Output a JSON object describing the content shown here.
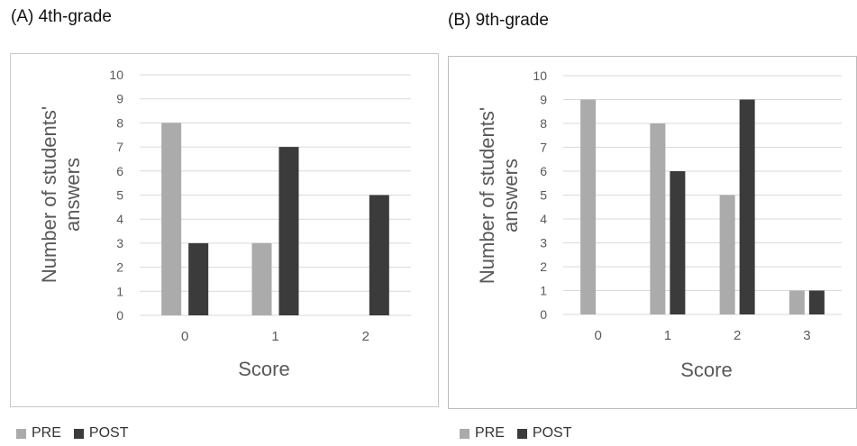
{
  "colors": {
    "pre": "#ababab",
    "post": "#3b3b3b",
    "grid": "#d9d9d9",
    "axis_text": "#595959"
  },
  "chart_data": [
    {
      "panel_title": "(A) 4th-grade",
      "type": "bar",
      "categories": [
        "0",
        "1",
        "2"
      ],
      "series": [
        {
          "name": "PRE",
          "values": [
            8,
            3,
            0
          ]
        },
        {
          "name": "POST",
          "values": [
            3,
            7,
            5
          ]
        }
      ],
      "xlabel": "Score",
      "ylabel": "Number of students' answers",
      "ylim": [
        0,
        10
      ],
      "yticks": [
        "0",
        "1",
        "2",
        "3",
        "4",
        "5",
        "6",
        "7",
        "8",
        "9",
        "10"
      ],
      "grid": true,
      "legend": "bottom-left"
    },
    {
      "panel_title": "(B) 9th-grade",
      "type": "bar",
      "categories": [
        "0",
        "1",
        "2",
        "3"
      ],
      "series": [
        {
          "name": "PRE",
          "values": [
            9,
            8,
            5,
            1
          ]
        },
        {
          "name": "POST",
          "values": [
            0,
            6,
            9,
            1
          ]
        }
      ],
      "xlabel": "Score",
      "ylabel": "Number of students' answers",
      "ylim": [
        0,
        10
      ],
      "yticks": [
        "0",
        "1",
        "2",
        "3",
        "4",
        "5",
        "6",
        "7",
        "8",
        "9",
        "10"
      ],
      "grid": true,
      "legend": "bottom-left"
    }
  ]
}
